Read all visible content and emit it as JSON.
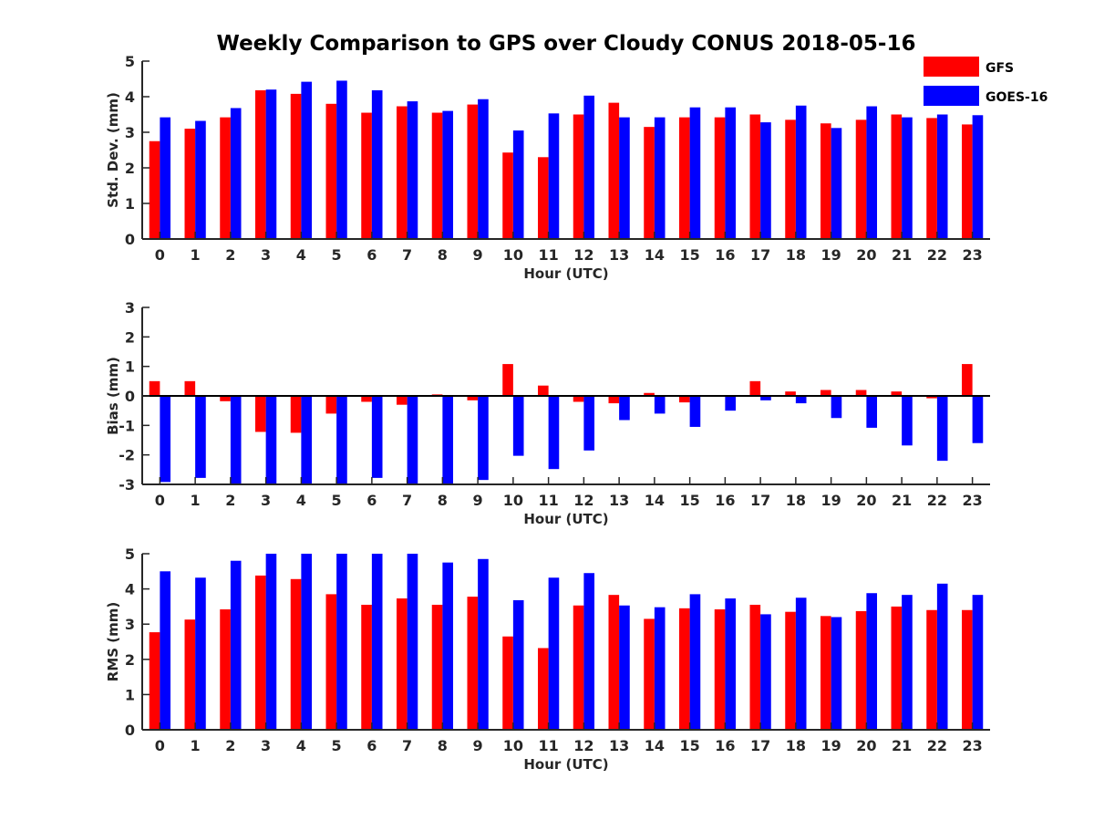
{
  "chart_data": {
    "title": "Weekly Comparison to GPS over Cloudy CONUS 2018-05-16",
    "legend": {
      "placement": "top-right",
      "entries": [
        {
          "name": "GFS",
          "color": "#ff0000"
        },
        {
          "name": "GOES-16",
          "color": "#0000ff"
        }
      ]
    },
    "panels": [
      {
        "type": "bar",
        "ylabel": "Std. Dev. (mm)",
        "xlabel": "Hour (UTC)",
        "ylim": [
          0,
          5
        ],
        "yticks": [
          0,
          1,
          2,
          3,
          4,
          5
        ],
        "categories": [
          "0",
          "1",
          "2",
          "3",
          "4",
          "5",
          "6",
          "7",
          "8",
          "9",
          "10",
          "11",
          "12",
          "13",
          "14",
          "15",
          "16",
          "17",
          "18",
          "19",
          "20",
          "21",
          "22",
          "23"
        ],
        "series": [
          {
            "name": "GFS",
            "color": "#ff0000",
            "values": [
              2.75,
              3.1,
              3.42,
              4.18,
              4.08,
              3.8,
              3.55,
              3.73,
              3.55,
              3.78,
              2.43,
              2.3,
              3.5,
              3.83,
              3.15,
              3.42,
              3.42,
              3.5,
              3.35,
              3.25,
              3.35,
              3.5,
              3.4,
              3.22
            ]
          },
          {
            "name": "GOES-16",
            "color": "#0000ff",
            "values": [
              3.42,
              3.32,
              3.68,
              4.2,
              4.42,
              4.45,
              4.18,
              3.87,
              3.6,
              3.93,
              3.05,
              3.53,
              4.03,
              3.42,
              3.42,
              3.7,
              3.7,
              3.28,
              3.75,
              3.12,
              3.73,
              3.42,
              3.5,
              3.48
            ]
          }
        ]
      },
      {
        "type": "bar",
        "ylabel": "Bias (mm)",
        "xlabel": "Hour (UTC)",
        "ylim": [
          -3,
          3
        ],
        "yticks": [
          -3,
          -2,
          -1,
          0,
          1,
          2,
          3
        ],
        "categories": [
          "0",
          "1",
          "2",
          "3",
          "4",
          "5",
          "6",
          "7",
          "8",
          "9",
          "10",
          "11",
          "12",
          "13",
          "14",
          "15",
          "16",
          "17",
          "18",
          "19",
          "20",
          "21",
          "22",
          "23"
        ],
        "series": [
          {
            "name": "GFS",
            "color": "#ff0000",
            "values": [
              0.5,
              0.5,
              -0.18,
              -1.22,
              -1.25,
              -0.6,
              -0.2,
              -0.3,
              0.05,
              -0.15,
              1.08,
              0.35,
              -0.2,
              -0.25,
              0.1,
              -0.22,
              0.02,
              0.5,
              0.15,
              0.2,
              0.2,
              0.15,
              -0.08,
              1.08
            ]
          },
          {
            "name": "GOES-16",
            "color": "#0000ff",
            "values": [
              -2.92,
              -2.78,
              -3.0,
              -3.0,
              -3.0,
              -3.0,
              -2.78,
              -3.0,
              -3.0,
              -2.85,
              -2.03,
              -2.48,
              -1.85,
              -0.82,
              -0.6,
              -1.05,
              -0.5,
              -0.15,
              -0.25,
              -0.75,
              -1.08,
              -1.68,
              -2.2,
              -1.6
            ]
          }
        ]
      },
      {
        "type": "bar",
        "ylabel": "RMS (mm)",
        "xlabel": "Hour (UTC)",
        "ylim": [
          0,
          5
        ],
        "yticks": [
          0,
          1,
          2,
          3,
          4,
          5
        ],
        "categories": [
          "0",
          "1",
          "2",
          "3",
          "4",
          "5",
          "6",
          "7",
          "8",
          "9",
          "10",
          "11",
          "12",
          "13",
          "14",
          "15",
          "16",
          "17",
          "18",
          "19",
          "20",
          "21",
          "22",
          "23"
        ],
        "series": [
          {
            "name": "GFS",
            "color": "#ff0000",
            "values": [
              2.77,
              3.13,
              3.42,
              4.38,
              4.28,
              3.85,
              3.55,
              3.73,
              3.55,
              3.78,
              2.65,
              2.32,
              3.53,
              3.83,
              3.15,
              3.45,
              3.42,
              3.55,
              3.35,
              3.23,
              3.37,
              3.5,
              3.4,
              3.4
            ]
          },
          {
            "name": "GOES-16",
            "color": "#0000ff",
            "values": [
              4.5,
              4.32,
              4.8,
              5.0,
              5.0,
              5.0,
              5.0,
              5.0,
              4.75,
              4.85,
              3.68,
              4.32,
              4.45,
              3.53,
              3.48,
              3.85,
              3.73,
              3.28,
              3.75,
              3.2,
              3.88,
              3.83,
              4.15,
              3.83
            ]
          }
        ]
      }
    ]
  }
}
